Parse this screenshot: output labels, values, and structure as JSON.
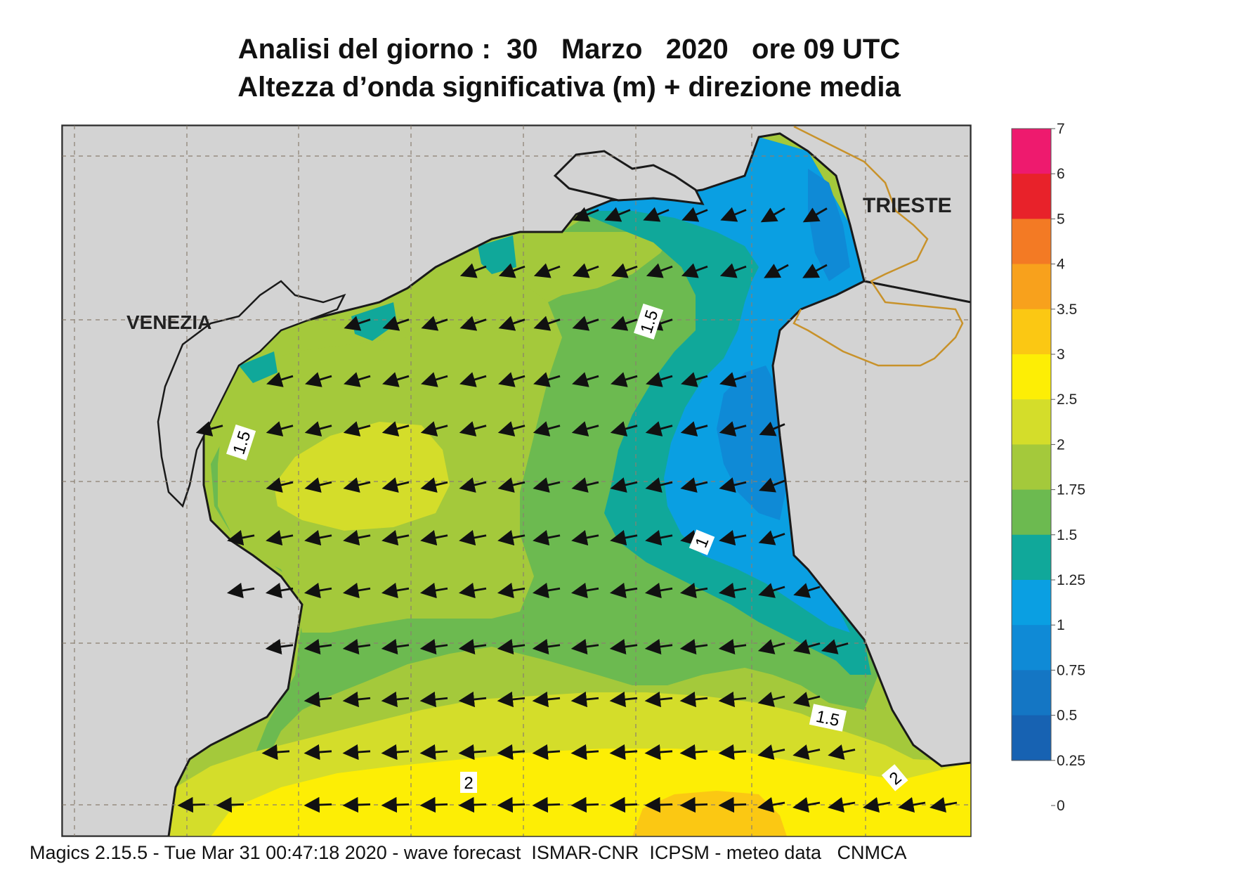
{
  "header": {
    "title_line1": "Analisi del giorno :  30   Marzo   2020   ore 09 UTC",
    "title_line2": "Altezza d’onda significativa (m) + direzione media"
  },
  "map": {
    "city_labels": [
      "VENEZIA",
      "TRIESTE"
    ],
    "contour_labels": [
      "1.5",
      "1.5",
      "1",
      "1.5",
      "2",
      "2"
    ],
    "colors": {
      "land": "#d3d3d3",
      "coast": "#1a1a1a",
      "border": "#c8922a"
    },
    "arrow_direction": "toward-west-southwest"
  },
  "legend": {
    "ticks": [
      "7",
      "6",
      "5",
      "4",
      "3.5",
      "3",
      "2.5",
      "2",
      "1.75",
      "1.5",
      "1.25",
      "1",
      "0.75",
      "0.5",
      "0.25",
      "0"
    ],
    "colors": [
      "#ee1a6e",
      "#e8222a",
      "#f37a24",
      "#f8a11c",
      "#fbc813",
      "#fdee05",
      "#d4dd2a",
      "#a4c93b",
      "#6cba50",
      "#10a89a",
      "#0a9fe2",
      "#0f8ad6",
      "#1476c4",
      "#1762b2"
    ]
  },
  "footer": {
    "text": "Magics 2.15.5 - Tue Mar 31 00:47:18 2020 - wave forecast  ISMAR-CNR  ICPSM - meteo data   CNMCA"
  }
}
